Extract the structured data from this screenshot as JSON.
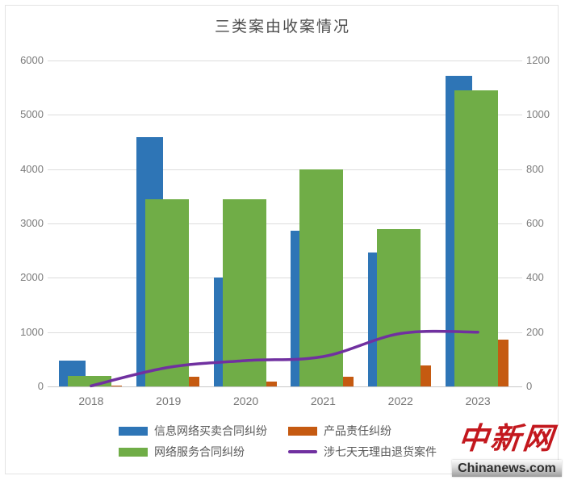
{
  "title": "三类案由收案情况",
  "chart_data": {
    "type": "combo",
    "title": "三类案由收案情况",
    "categories": [
      "2018",
      "2019",
      "2020",
      "2021",
      "2022",
      "2023"
    ],
    "series": [
      {
        "name": "信息网络买卖合同纠纷",
        "type": "bar",
        "axis": "left",
        "color": "#2E75B6",
        "values": [
          470,
          4590,
          2000,
          2870,
          2460,
          5720
        ]
      },
      {
        "name": "网络服务合同纠纷",
        "type": "bar",
        "axis": "left",
        "color": "#70AD47",
        "values": [
          200,
          3450,
          3450,
          4000,
          2900,
          5450
        ]
      },
      {
        "name": "产品责任纠纷",
        "type": "bar",
        "axis": "left",
        "color": "#C55A11",
        "values": [
          15,
          180,
          90,
          180,
          380,
          860
        ]
      },
      {
        "name": "涉七天无理由退货案件",
        "type": "line",
        "axis": "right",
        "color": "#7030A0",
        "values": [
          2,
          70,
          95,
          110,
          195,
          200
        ]
      }
    ],
    "left_axis": {
      "min": 0,
      "max": 6000,
      "step": 1000,
      "ticks": [
        "0",
        "1000",
        "2000",
        "3000",
        "4000",
        "5000",
        "6000"
      ]
    },
    "right_axis": {
      "min": 0,
      "max": 1200,
      "step": 200,
      "ticks": [
        "0",
        "200",
        "400",
        "600",
        "800",
        "1000",
        "1200"
      ]
    },
    "grid": true,
    "legend_position": "bottom",
    "legend_rows": [
      [
        0,
        2
      ],
      [
        1,
        3
      ]
    ]
  },
  "watermark": {
    "logo_text": "中新网",
    "site_text": "Chinanews.com",
    "logo_color": "#c3181e"
  }
}
